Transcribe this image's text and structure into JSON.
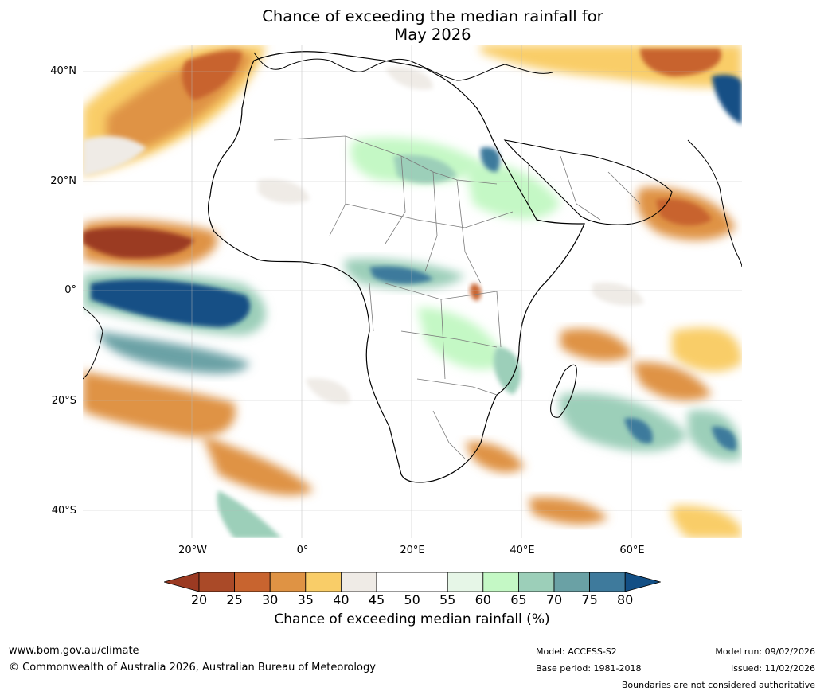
{
  "title": {
    "line1": "Chance of exceeding the median rainfall for",
    "line2": "May 2026"
  },
  "map": {
    "region": "Africa",
    "latitude_labels": [
      "40°N",
      "20°N",
      "0°",
      "20°S",
      "40°S"
    ],
    "longitude_labels": [
      "20°W",
      "0°",
      "20°E",
      "40°E",
      "60°E"
    ]
  },
  "colorbar": {
    "label": "Chance of exceeding median rainfall (%)",
    "ticks": [
      "20",
      "25",
      "30",
      "35",
      "40",
      "45",
      "50",
      "55",
      "60",
      "65",
      "70",
      "75",
      "80"
    ],
    "colors": [
      "#9b3a22",
      "#aa4a28",
      "#c8642f",
      "#df9344",
      "#f9cd68",
      "#efebe6",
      "#ffffff",
      "#ffffff",
      "#e6f6e7",
      "#c4f8c5",
      "#9ccfb9",
      "#6aa1a5",
      "#3e7a9c",
      "#134f85"
    ]
  },
  "footer": {
    "website": "www.bom.gov.au/climate",
    "copyright": "© Commonwealth of Australia 2026, Australian Bureau of Meteorology",
    "model": "Model: ACCESS-S2",
    "base_period": "Base period: 1981-2018",
    "model_run": "Model run: 09/02/2026",
    "issued": "Issued: 11/02/2026",
    "disclaimer": "Boundaries are not considered authoritative"
  }
}
